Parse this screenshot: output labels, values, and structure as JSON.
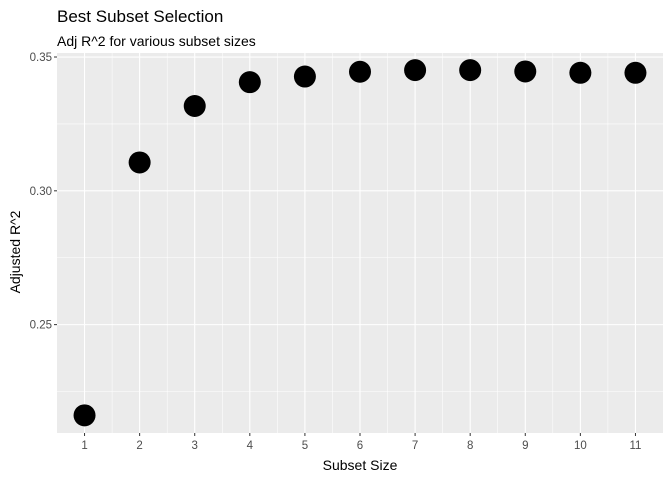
{
  "chart_data": {
    "type": "scatter",
    "title": "Best Subset Selection",
    "subtitle": "Adj R^2 for various subset sizes",
    "xlabel": "Subset Size",
    "ylabel": "Adjusted R^2",
    "x": [
      1,
      2,
      3,
      4,
      5,
      6,
      7,
      8,
      9,
      10,
      11
    ],
    "y": [
      0.2161,
      0.3106,
      0.3317,
      0.3406,
      0.3427,
      0.3445,
      0.3451,
      0.3451,
      0.3446,
      0.3441,
      0.3441
    ],
    "x_ticks": [
      "1",
      "2",
      "3",
      "4",
      "5",
      "6",
      "7",
      "8",
      "9",
      "10",
      "11"
    ],
    "y_ticks": [
      "0.25",
      "0.30",
      "0.35"
    ],
    "xlim": [
      0.5,
      11.5
    ],
    "ylim": [
      0.2095,
      0.3515
    ],
    "grid": true,
    "legend": "none",
    "colors": {
      "panel_background": "#ebebeb",
      "grid": "#ffffff",
      "point": "#000000",
      "tick_text": "#4d4d4d"
    }
  }
}
